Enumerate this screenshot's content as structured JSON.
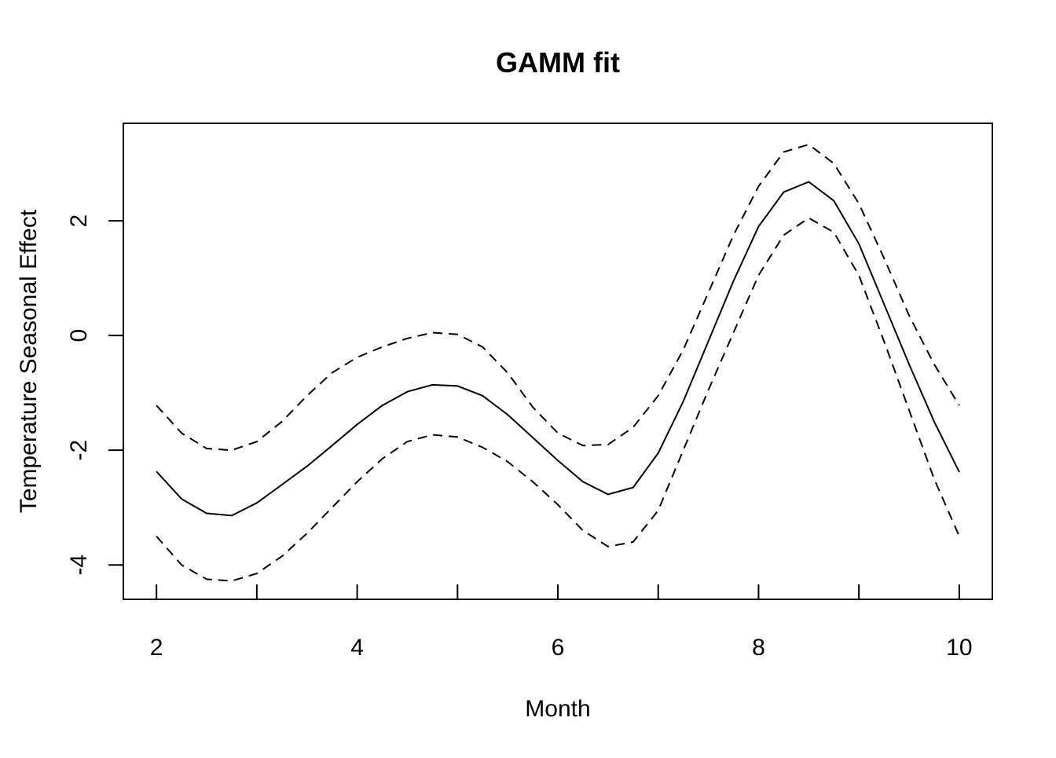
{
  "chart_data": {
    "type": "line",
    "title": "GAMM fit",
    "xlabel": "Month",
    "ylabel": "Temperature Seasonal Effect",
    "x": [
      2,
      2.25,
      2.5,
      2.75,
      3,
      3.25,
      3.5,
      3.75,
      4,
      4.25,
      4.5,
      4.75,
      5,
      5.25,
      5.5,
      5.75,
      6,
      6.25,
      6.5,
      6.75,
      7,
      7.25,
      7.5,
      7.75,
      8,
      8.25,
      8.5,
      8.75,
      9,
      9.25,
      9.5,
      9.75,
      10
    ],
    "series": [
      {
        "color": "#000000",
        "dash": "solid",
        "values": [
          -2.37,
          -2.85,
          -3.1,
          -3.14,
          -2.92,
          -2.6,
          -2.28,
          -1.92,
          -1.55,
          -1.22,
          -0.98,
          -0.86,
          -0.88,
          -1.05,
          -1.38,
          -1.78,
          -2.18,
          -2.55,
          -2.77,
          -2.65,
          -2.05,
          -1.15,
          -0.1,
          0.95,
          1.9,
          2.5,
          2.68,
          2.35,
          1.6,
          0.55,
          -0.5,
          -1.5,
          -2.38
        ]
      },
      {
        "color": "#000000",
        "dash": "dashed",
        "values": [
          -1.22,
          -1.7,
          -1.97,
          -2.0,
          -1.85,
          -1.5,
          -1.05,
          -0.65,
          -0.38,
          -0.2,
          -0.05,
          0.05,
          0.02,
          -0.2,
          -0.65,
          -1.25,
          -1.7,
          -1.92,
          -1.9,
          -1.6,
          -1.05,
          -0.25,
          0.75,
          1.75,
          2.6,
          3.2,
          3.33,
          3.0,
          2.3,
          1.35,
          0.35,
          -0.5,
          -1.22
        ]
      },
      {
        "color": "#000000",
        "dash": "dashed",
        "values": [
          -3.5,
          -4.0,
          -4.25,
          -4.28,
          -4.15,
          -3.85,
          -3.45,
          -3.0,
          -2.55,
          -2.15,
          -1.85,
          -1.73,
          -1.77,
          -1.95,
          -2.2,
          -2.55,
          -2.95,
          -3.4,
          -3.68,
          -3.6,
          -3.05,
          -2.0,
          -0.95,
          0.05,
          1.05,
          1.75,
          2.05,
          1.8,
          1.05,
          -0.1,
          -1.3,
          -2.5,
          -3.5
        ]
      }
    ],
    "xlim": [
      1.67,
      10.33
    ],
    "ylim": [
      -4.6,
      3.7
    ],
    "xticks": [
      2,
      4,
      6,
      8,
      10
    ],
    "xminorticks": [
      3,
      5,
      7,
      9
    ],
    "yticks": [
      -4,
      -2,
      0,
      2
    ]
  }
}
